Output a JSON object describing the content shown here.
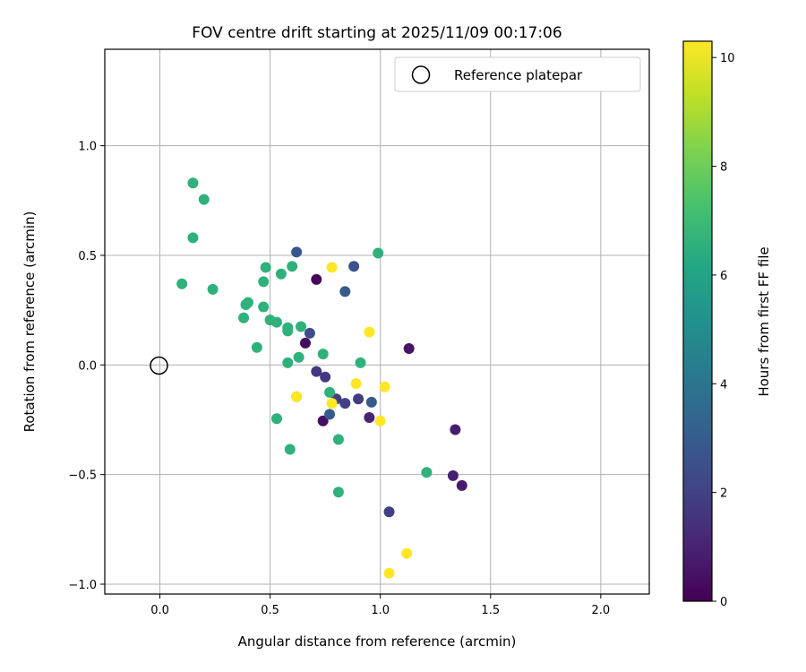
{
  "chart_data": {
    "type": "scatter",
    "title": "FOV centre drift starting at 2025/11/09 00:17:06",
    "xlabel": "Angular distance from reference (arcmin)",
    "ylabel": "Rotation from reference (arcmin)",
    "xlim": [
      -0.25,
      2.22
    ],
    "ylim": [
      -1.045,
      1.44
    ],
    "xticks": [
      0.0,
      0.5,
      1.0,
      1.5,
      2.0
    ],
    "xtick_labels": [
      "0.0",
      "0.5",
      "1.0",
      "1.5",
      "2.0"
    ],
    "yticks": [
      -1.0,
      -0.5,
      0.0,
      0.5,
      1.0
    ],
    "ytick_labels": [
      "−1.0",
      "−0.5",
      "0.0",
      "0.5",
      "1.0"
    ],
    "grid": true,
    "legend": {
      "position": "top-right",
      "entries": [
        "Reference platepar"
      ]
    },
    "reference_point": {
      "x": 0.0,
      "y": 0.0,
      "label": "Reference platepar"
    },
    "colorbar": {
      "label": "Hours from first FF file",
      "range": [
        0,
        10.3
      ],
      "ticks": [
        0,
        2,
        4,
        6,
        8,
        10
      ],
      "tick_labels": [
        "0",
        "2",
        "4",
        "6",
        "8",
        "10"
      ],
      "colormap": "viridis"
    },
    "points": [
      {
        "x": 0.71,
        "y": 0.39,
        "c": 0.2
      },
      {
        "x": 0.66,
        "y": 0.1,
        "c": 0.3
      },
      {
        "x": 0.74,
        "y": -0.255,
        "c": 0.4
      },
      {
        "x": 1.13,
        "y": 0.075,
        "c": 0.6
      },
      {
        "x": 1.34,
        "y": -0.295,
        "c": 0.8
      },
      {
        "x": 1.33,
        "y": -0.505,
        "c": 0.9
      },
      {
        "x": 1.37,
        "y": -0.55,
        "c": 0.8
      },
      {
        "x": 0.95,
        "y": -0.24,
        "c": 1.0
      },
      {
        "x": 0.71,
        "y": -0.03,
        "c": 1.6
      },
      {
        "x": 0.75,
        "y": -0.055,
        "c": 1.7
      },
      {
        "x": 0.8,
        "y": -0.155,
        "c": 1.8
      },
      {
        "x": 0.84,
        "y": -0.175,
        "c": 1.9
      },
      {
        "x": 0.9,
        "y": -0.155,
        "c": 1.8
      },
      {
        "x": 1.04,
        "y": -0.67,
        "c": 1.9
      },
      {
        "x": 0.68,
        "y": 0.145,
        "c": 2.4
      },
      {
        "x": 0.62,
        "y": 0.515,
        "c": 2.8
      },
      {
        "x": 0.88,
        "y": 0.45,
        "c": 2.6
      },
      {
        "x": 0.84,
        "y": 0.335,
        "c": 2.9
      },
      {
        "x": 0.77,
        "y": -0.225,
        "c": 2.9
      },
      {
        "x": 0.96,
        "y": -0.17,
        "c": 2.9
      },
      {
        "x": 0.15,
        "y": 0.83,
        "c": 6.6
      },
      {
        "x": 0.2,
        "y": 0.755,
        "c": 6.6
      },
      {
        "x": 0.15,
        "y": 0.58,
        "c": 6.6
      },
      {
        "x": 0.1,
        "y": 0.37,
        "c": 6.6
      },
      {
        "x": 0.24,
        "y": 0.345,
        "c": 6.6
      },
      {
        "x": 0.4,
        "y": 0.285,
        "c": 6.6
      },
      {
        "x": 0.39,
        "y": 0.275,
        "c": 6.6
      },
      {
        "x": 0.38,
        "y": 0.215,
        "c": 6.6
      },
      {
        "x": 0.44,
        "y": 0.08,
        "c": 6.6
      },
      {
        "x": 0.47,
        "y": 0.38,
        "c": 6.6
      },
      {
        "x": 0.48,
        "y": 0.445,
        "c": 6.6
      },
      {
        "x": 0.47,
        "y": 0.265,
        "c": 6.6
      },
      {
        "x": 0.5,
        "y": 0.205,
        "c": 6.6
      },
      {
        "x": 0.53,
        "y": 0.195,
        "c": 6.6
      },
      {
        "x": 0.55,
        "y": 0.415,
        "c": 6.6
      },
      {
        "x": 0.6,
        "y": 0.45,
        "c": 6.6
      },
      {
        "x": 0.58,
        "y": 0.17,
        "c": 6.6
      },
      {
        "x": 0.58,
        "y": 0.155,
        "c": 6.6
      },
      {
        "x": 0.64,
        "y": 0.175,
        "c": 6.6
      },
      {
        "x": 0.58,
        "y": 0.01,
        "c": 6.6
      },
      {
        "x": 0.63,
        "y": 0.035,
        "c": 6.6
      },
      {
        "x": 0.74,
        "y": 0.05,
        "c": 6.6
      },
      {
        "x": 0.91,
        "y": 0.01,
        "c": 6.6
      },
      {
        "x": 0.99,
        "y": 0.51,
        "c": 6.6
      },
      {
        "x": 0.53,
        "y": -0.245,
        "c": 6.6
      },
      {
        "x": 0.59,
        "y": -0.385,
        "c": 6.6
      },
      {
        "x": 0.81,
        "y": -0.34,
        "c": 6.6
      },
      {
        "x": 0.81,
        "y": -0.58,
        "c": 6.6
      },
      {
        "x": 1.21,
        "y": -0.49,
        "c": 6.6
      },
      {
        "x": 0.62,
        "y": -0.145,
        "c": 6.6
      },
      {
        "x": 0.77,
        "y": -0.125,
        "c": 6.6
      },
      {
        "x": 0.78,
        "y": 0.445,
        "c": 10.3
      },
      {
        "x": 0.95,
        "y": 0.15,
        "c": 10.3
      },
      {
        "x": 0.89,
        "y": -0.085,
        "c": 10.3
      },
      {
        "x": 1.02,
        "y": -0.1,
        "c": 10.3
      },
      {
        "x": 0.62,
        "y": -0.145,
        "c": 10.3
      },
      {
        "x": 0.78,
        "y": -0.175,
        "c": 10.3
      },
      {
        "x": 1.0,
        "y": -0.255,
        "c": 10.3
      },
      {
        "x": 1.04,
        "y": -0.95,
        "c": 10.3
      },
      {
        "x": 1.12,
        "y": -0.86,
        "c": 10.3
      }
    ]
  }
}
